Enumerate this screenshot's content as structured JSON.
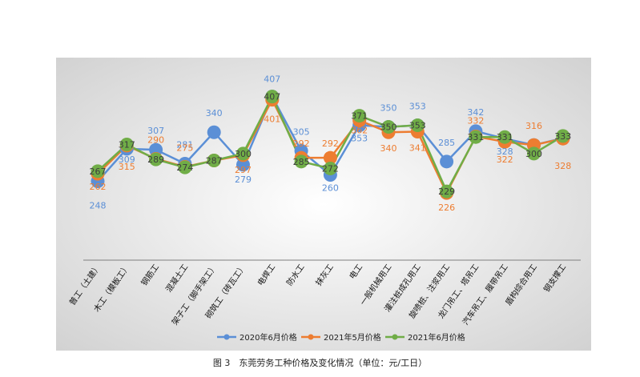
{
  "caption": "图 3　东莞劳务工种价格及变化情况（单位：元/工日）",
  "chart_data": {
    "type": "line",
    "categories": [
      "普工（土建）",
      "木工（模板工）",
      "钢筋工",
      "混凝土工",
      "架子工（脚手架工）",
      "砌筑工（砖瓦工）",
      "电焊工",
      "防水工",
      "抹灰工",
      "电工",
      "一般机械用工",
      "灌注桩成孔用工",
      "旋喷桩、注浆用工",
      "龙门吊工、塔吊工",
      "汽车吊工、履带吊工",
      "盾构综合用工",
      "钢支撑工"
    ],
    "series": [
      {
        "name": "2020年6月价格",
        "color": "#5b8fd6",
        "values": [
          248,
          309,
          307,
          281,
          340,
          279,
          407,
          305,
          260,
          353,
          350,
          353,
          285,
          342,
          328,
          316,
          329
        ]
      },
      {
        "name": "2021年5月价格",
        "color": "#ed7d31",
        "values": [
          262,
          315,
          290,
          275,
          287,
          297,
          401,
          292,
          292,
          362,
          340,
          341,
          226,
          332,
          322,
          316,
          328
        ]
      },
      {
        "name": "2021年6月价格",
        "color": "#70ad47",
        "values": [
          267,
          317,
          289,
          274,
          287,
          300,
          407,
          285,
          272,
          371,
          350,
          353,
          229,
          331,
          331,
          300,
          333
        ]
      }
    ],
    "data_labels": {
      "s0": [
        "248",
        "309",
        "307",
        "281",
        "340",
        "279",
        "407",
        "305",
        "260",
        "353",
        "350",
        "353",
        "285",
        "342",
        "328",
        "",
        ""
      ],
      "s1": [
        "262",
        "315",
        "290",
        "275",
        "",
        "297",
        "401",
        "292",
        "292",
        "362",
        "340",
        "341",
        "226",
        "332",
        "322",
        "316",
        "328"
      ],
      "s2": [
        "267",
        "317",
        "289",
        "274",
        "287",
        "300",
        "407",
        "285",
        "272",
        "371",
        "350",
        "353",
        "229",
        "331",
        "331",
        "300",
        "333"
      ]
    },
    "ylim": [
      100,
      480
    ],
    "legend_position": "bottom",
    "grid": false
  }
}
